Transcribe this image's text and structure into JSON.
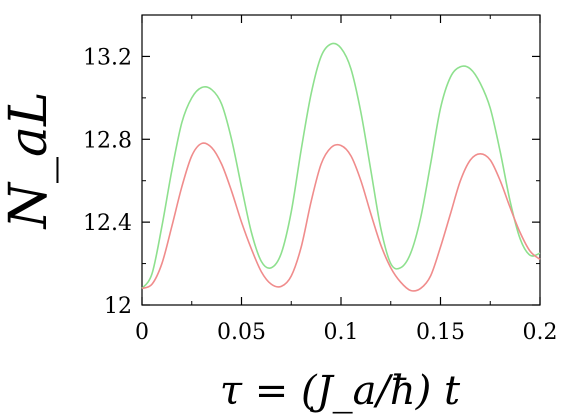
{
  "chart_data": {
    "type": "line",
    "xlabel": "τ = (J_a/ħ) t",
    "ylabel": "N_aL",
    "xlim": [
      0,
      0.2
    ],
    "ylim": [
      12,
      13.4
    ],
    "x_ticks": [
      "0",
      "0.05",
      "0.1",
      "0.15",
      "0.2"
    ],
    "y_ticks": [
      "12",
      "12.4",
      "12.8",
      "13.2"
    ],
    "grid": false,
    "legend": "none",
    "series": [
      {
        "color": "#8ee08e",
        "x": [
          0,
          0.005,
          0.01,
          0.015,
          0.02,
          0.025,
          0.03,
          0.035,
          0.04,
          0.045,
          0.05,
          0.055,
          0.06,
          0.065,
          0.07,
          0.075,
          0.08,
          0.085,
          0.09,
          0.095,
          0.1,
          0.105,
          0.11,
          0.115,
          0.12,
          0.125,
          0.13,
          0.135,
          0.14,
          0.145,
          0.15,
          0.155,
          0.16,
          0.165,
          0.17,
          0.175,
          0.18,
          0.185,
          0.19,
          0.195,
          0.2
        ],
        "values": [
          12.08,
          12.15,
          12.38,
          12.65,
          12.88,
          13.0,
          13.05,
          13.04,
          12.97,
          12.8,
          12.57,
          12.35,
          12.21,
          12.18,
          12.25,
          12.45,
          12.75,
          13.02,
          13.2,
          13.26,
          13.24,
          13.14,
          12.93,
          12.65,
          12.37,
          12.2,
          12.18,
          12.25,
          12.42,
          12.68,
          12.95,
          13.1,
          13.15,
          13.14,
          13.07,
          12.95,
          12.74,
          12.5,
          12.32,
          12.24,
          12.25
        ]
      },
      {
        "color": "#f08c8c",
        "x": [
          0,
          0.005,
          0.01,
          0.015,
          0.02,
          0.025,
          0.03,
          0.035,
          0.04,
          0.045,
          0.05,
          0.055,
          0.06,
          0.065,
          0.07,
          0.075,
          0.08,
          0.085,
          0.09,
          0.095,
          0.1,
          0.105,
          0.11,
          0.115,
          0.12,
          0.125,
          0.13,
          0.135,
          0.14,
          0.145,
          0.15,
          0.155,
          0.16,
          0.165,
          0.17,
          0.175,
          0.18,
          0.185,
          0.19,
          0.195,
          0.2
        ],
        "values": [
          12.08,
          12.1,
          12.2,
          12.38,
          12.57,
          12.72,
          12.78,
          12.76,
          12.68,
          12.55,
          12.4,
          12.27,
          12.16,
          12.1,
          12.09,
          12.14,
          12.28,
          12.5,
          12.68,
          12.76,
          12.77,
          12.72,
          12.6,
          12.44,
          12.29,
          12.18,
          12.11,
          12.07,
          12.08,
          12.14,
          12.28,
          12.44,
          12.6,
          12.7,
          12.73,
          12.7,
          12.6,
          12.47,
          12.35,
          12.26,
          12.22
        ]
      }
    ]
  }
}
